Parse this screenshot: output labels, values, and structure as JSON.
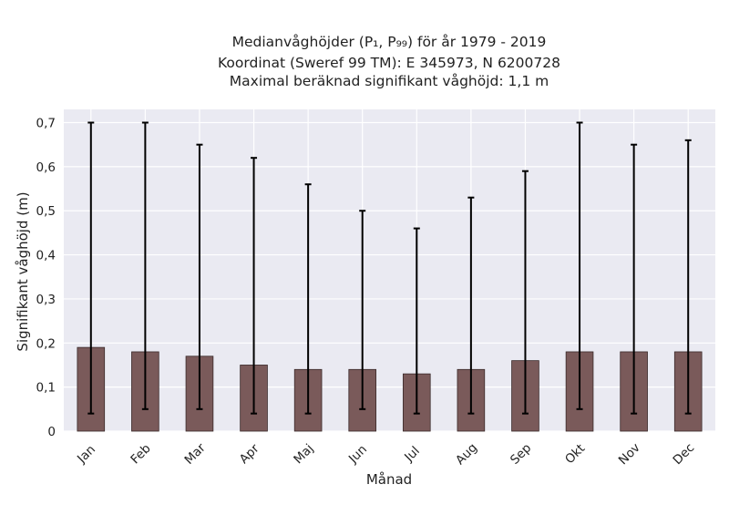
{
  "chart_data": {
    "type": "bar",
    "title_lines": [
      "Medianvåghöjder (P₁, P₉₉) för år 1979 - 2019",
      "Koordinat (Sweref 99 TM): E 345973, N 6200728",
      "Maximal beräknad signifikant våghöjd: 1,1 m"
    ],
    "xlabel": "Månad",
    "ylabel": "Signifikant våghöjd (m)",
    "categories": [
      "Jan",
      "Feb",
      "Mar",
      "Apr",
      "Maj",
      "Jun",
      "Jul",
      "Aug",
      "Sep",
      "Okt",
      "Nov",
      "Dec"
    ],
    "values": [
      0.19,
      0.18,
      0.17,
      0.15,
      0.14,
      0.14,
      0.13,
      0.14,
      0.16,
      0.18,
      0.18,
      0.18
    ],
    "error_low": [
      0.04,
      0.05,
      0.05,
      0.04,
      0.04,
      0.05,
      0.04,
      0.04,
      0.04,
      0.05,
      0.04,
      0.04
    ],
    "error_high": [
      0.7,
      0.7,
      0.65,
      0.62,
      0.56,
      0.5,
      0.46,
      0.53,
      0.59,
      0.7,
      0.65,
      0.66
    ],
    "ylim": [
      0,
      0.73
    ],
    "yticks": [
      0,
      0.1,
      0.2,
      0.3,
      0.4,
      0.5,
      0.6,
      0.7
    ],
    "ytick_labels": [
      "0",
      "0,1",
      "0,2",
      "0,3",
      "0,4",
      "0,5",
      "0,6",
      "0,7"
    ],
    "grid": true,
    "colors": {
      "bar_fill": "#7a5a5a",
      "bar_edge": "#3a2a2a",
      "error_bar": "#000000",
      "plot_background": "#eaeaf2",
      "grid": "#ffffff"
    }
  }
}
